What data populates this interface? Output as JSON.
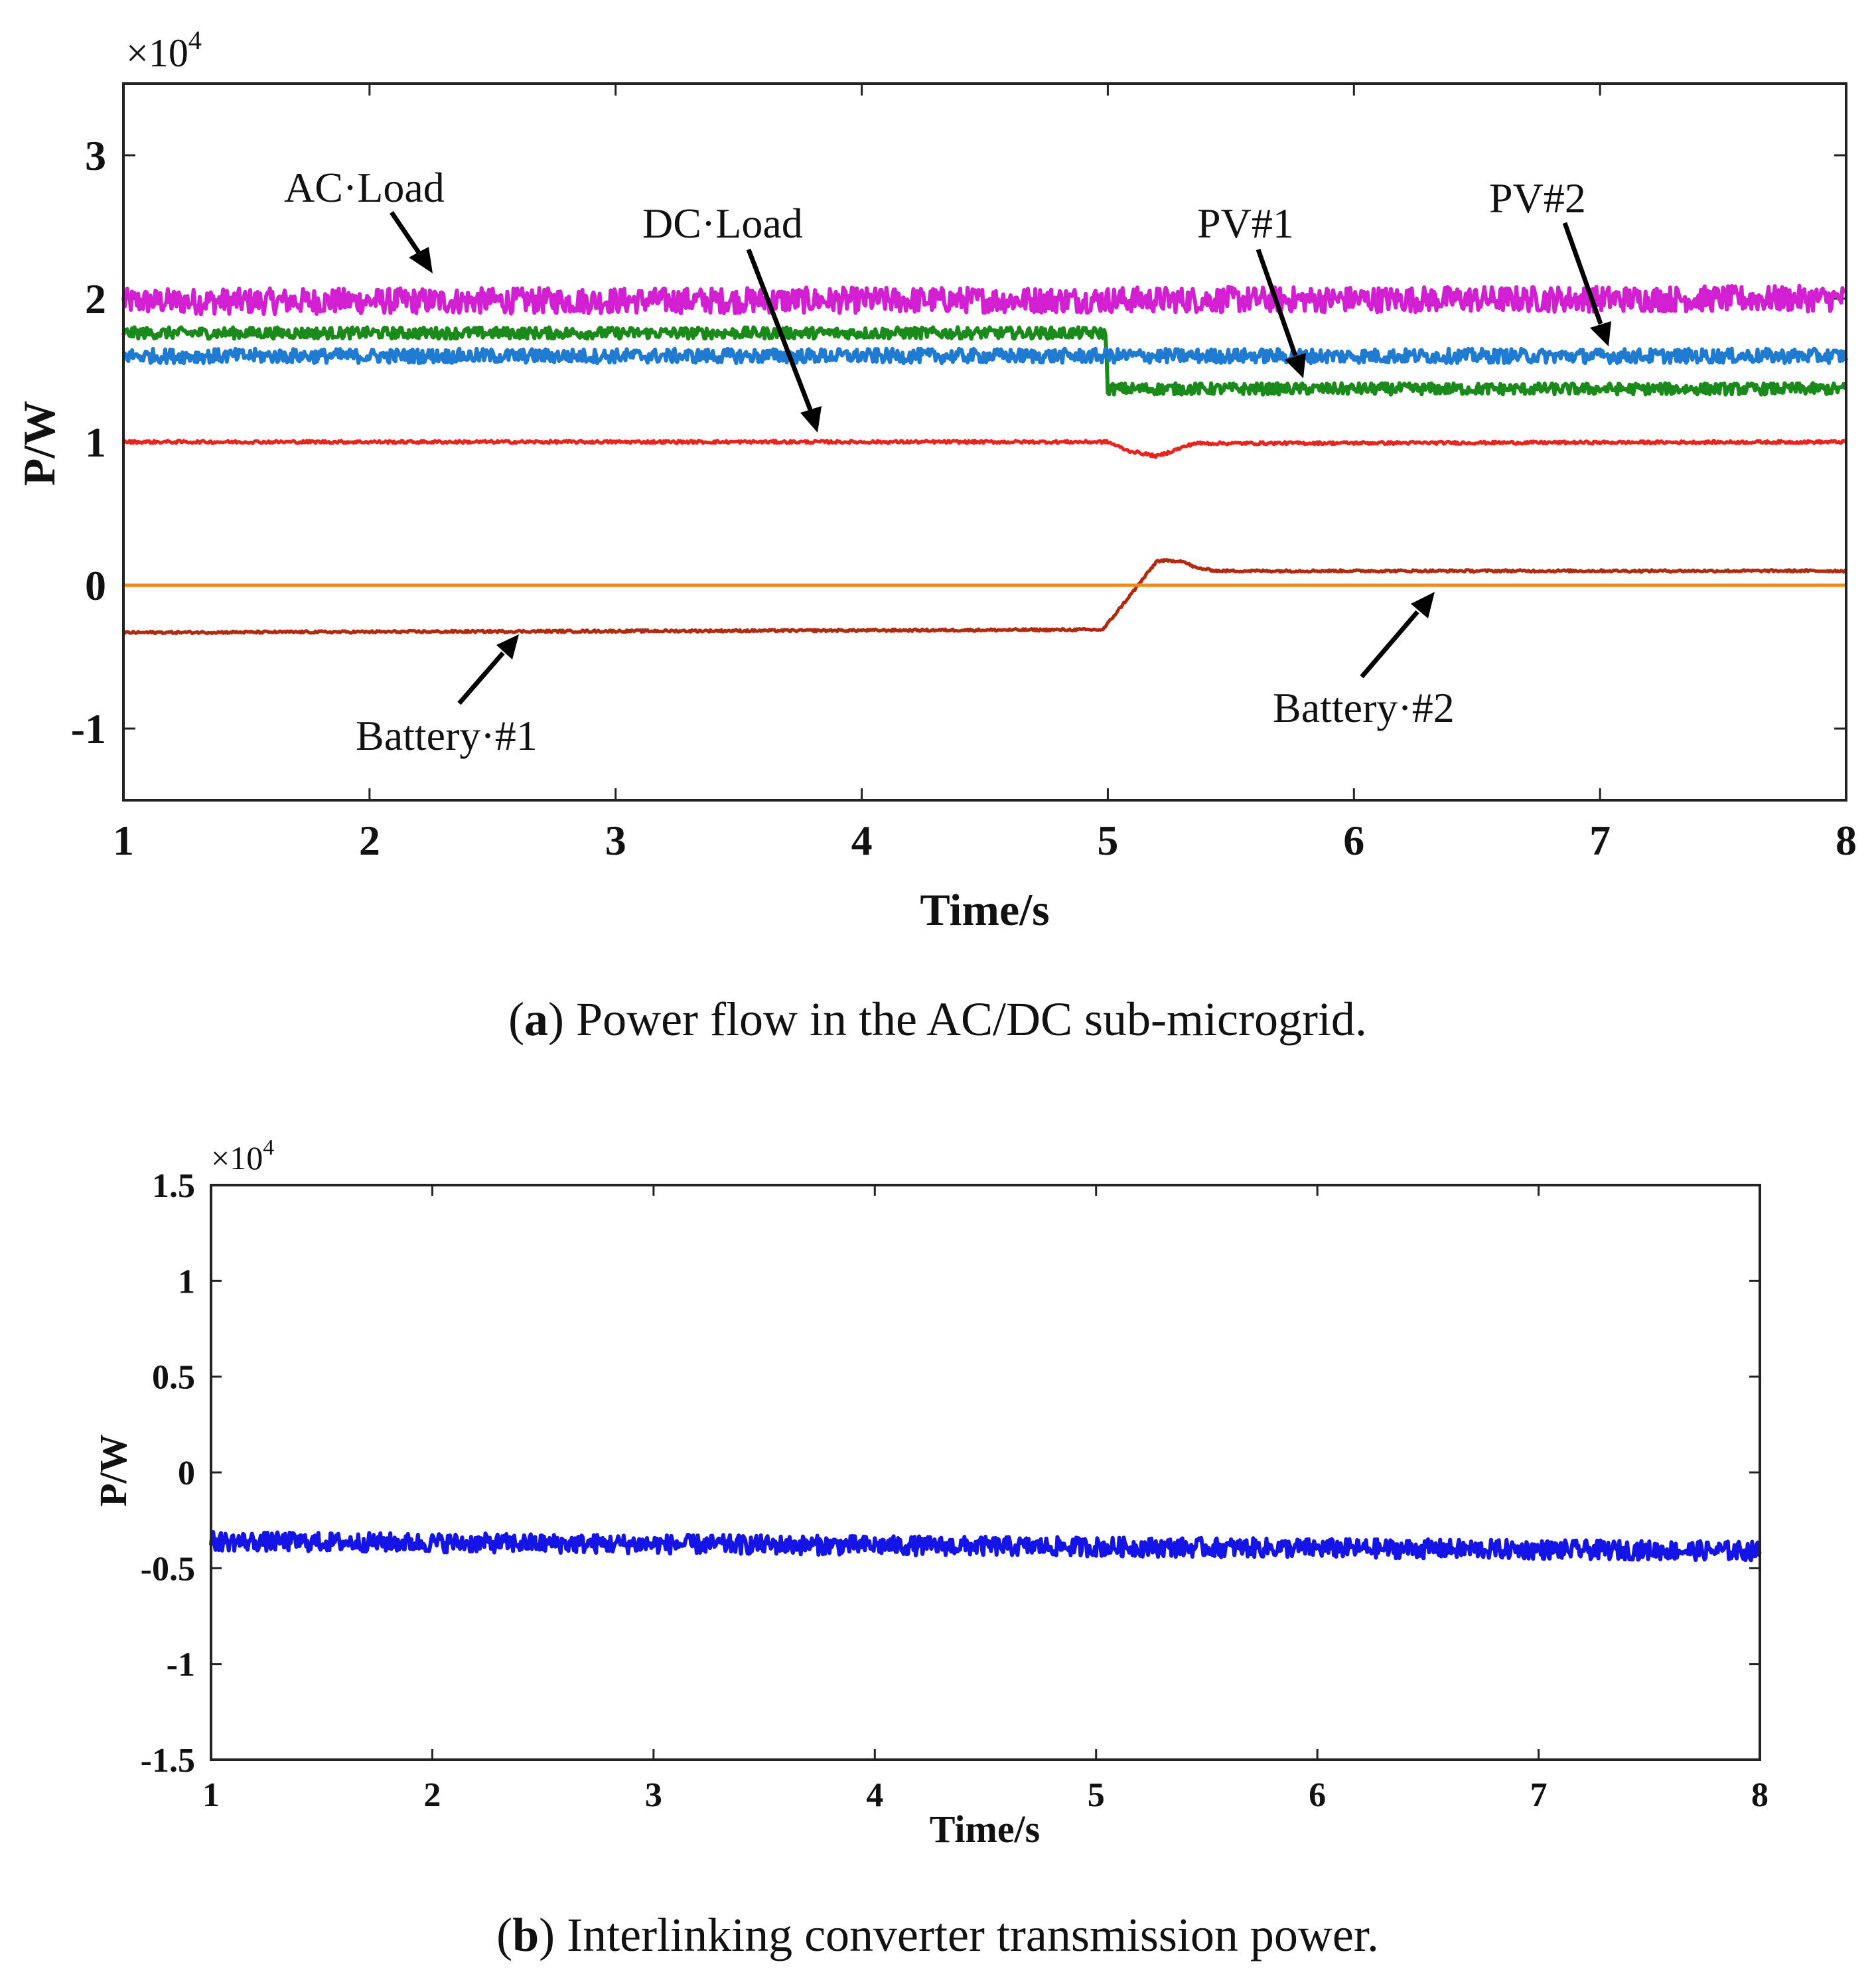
{
  "chart_data": [
    {
      "type": "line",
      "panel": "a",
      "caption": {
        "letter": "a",
        "open": "(",
        "close": ")",
        "text": " Power flow in the AC/DC sub-microgrid."
      },
      "xlabel": "Time/s",
      "ylabel": "P/W",
      "exponent_base": "×10",
      "exponent": "4",
      "xlim": [
        1,
        8
      ],
      "ylim": [
        -1.5,
        3.5
      ],
      "xticks": [
        1,
        2,
        3,
        4,
        5,
        6,
        7,
        8
      ],
      "yticks": [
        -1,
        0,
        1,
        2,
        3
      ],
      "xtick_labels": [
        "1",
        "2",
        "3",
        "4",
        "5",
        "6",
        "7",
        "8"
      ],
      "ytick_labels": [
        "-1",
        "0",
        "1",
        "2",
        "3"
      ],
      "series": [
        {
          "name": "AC Load",
          "color": "#d21fd2",
          "x": [
            1,
            8
          ],
          "y": [
            1.98,
            2.0
          ],
          "noise": 0.09
        },
        {
          "name": "PV#1",
          "color": "#1a8a1a",
          "x": [
            1,
            4.99,
            5.0,
            8
          ],
          "y": [
            1.76,
            1.76,
            1.37,
            1.37
          ],
          "noise": 0.04
        },
        {
          "name": "PV#2",
          "color": "#1f7bd2",
          "x": [
            1,
            8
          ],
          "y": [
            1.6,
            1.6
          ],
          "noise": 0.05
        },
        {
          "name": "DC Load",
          "color": "#e8241c",
          "x": [
            1,
            5.0,
            5.08,
            5.2,
            5.35,
            8
          ],
          "y": [
            1.0,
            1.0,
            0.94,
            0.9,
            0.99,
            1.0
          ],
          "noise": 0.01
        },
        {
          "name": "Battery #1",
          "color": "#b22a0e",
          "x": [
            1,
            4.98,
            5.1,
            5.2,
            5.3,
            5.36,
            5.45,
            8
          ],
          "y": [
            -0.33,
            -0.31,
            -0.05,
            0.17,
            0.17,
            0.12,
            0.1,
            0.1
          ],
          "noise": 0.008
        },
        {
          "name": "Battery #2",
          "color": "#f08a14",
          "x": [
            1,
            8
          ],
          "y": [
            0.0,
            0.0
          ],
          "noise": 0.0
        }
      ],
      "annotations": [
        {
          "text": "AC·Load",
          "points_to": "AC Load"
        },
        {
          "text": "DC·Load",
          "points_to": "DC Load"
        },
        {
          "text": "PV#1",
          "points_to": "PV#1"
        },
        {
          "text": "PV#2",
          "points_to": "PV#2"
        },
        {
          "text": "Battery·#1",
          "points_to": "Battery #1"
        },
        {
          "text": "Battery·#2",
          "points_to": "Battery #2"
        }
      ]
    },
    {
      "type": "line",
      "panel": "b",
      "caption": {
        "letter": "b",
        "open": "(",
        "close": ")",
        "text": " Interlinking converter transmission power."
      },
      "xlabel": "Time/s",
      "ylabel": "P/W",
      "exponent_base": "×10",
      "exponent": "4",
      "xlim": [
        1,
        8
      ],
      "ylim": [
        -1.5,
        1.5
      ],
      "xticks": [
        1,
        2,
        3,
        4,
        5,
        6,
        7,
        8
      ],
      "yticks": [
        -1.5,
        -1,
        -0.5,
        0,
        0.5,
        1,
        1.5
      ],
      "xtick_labels": [
        "1",
        "2",
        "3",
        "4",
        "5",
        "6",
        "7",
        "8"
      ],
      "ytick_labels": [
        "-1.5",
        "-1",
        "-0.5",
        "0",
        "0.5",
        "1",
        "1.5"
      ],
      "series": [
        {
          "name": "Interlinking converter",
          "color": "#1414e6",
          "x": [
            1,
            8
          ],
          "y": [
            -0.36,
            -0.41
          ],
          "noise": 0.05
        }
      ]
    }
  ]
}
